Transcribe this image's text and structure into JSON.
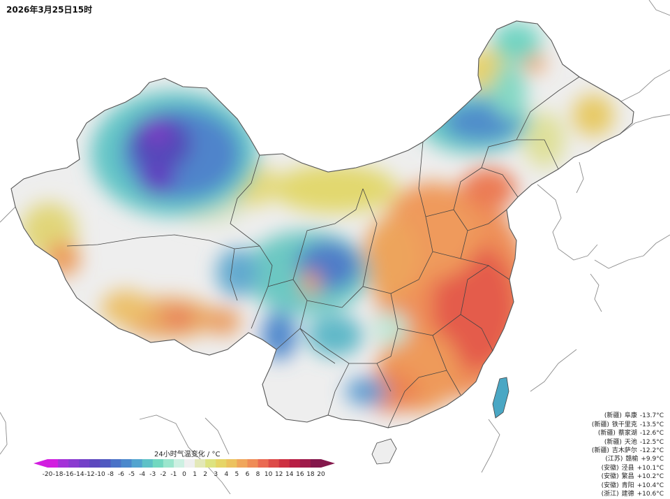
{
  "timestamp": "2026年3月25日15时",
  "legend": {
    "title": "24小时气温变化 / °C",
    "ticks": [
      "-20",
      "-18",
      "-16",
      "-14",
      "-12",
      "-10",
      "-8",
      "-6",
      "-5",
      "-4",
      "-3",
      "-2",
      "-1",
      "0",
      "1",
      "2",
      "3",
      "4",
      "5",
      "6",
      "8",
      "10",
      "12",
      "14",
      "16",
      "18",
      "20"
    ],
    "colors": [
      "#d21ee0",
      "#a431d8",
      "#8a3ad0",
      "#7340c8",
      "#5c48be",
      "#4f58c0",
      "#4a72c7",
      "#4a88cc",
      "#52a4cf",
      "#5ec1c7",
      "#72d8c0",
      "#9be6cd",
      "#cdf0e2",
      "#efefef",
      "#e3e8b8",
      "#dde380",
      "#e6d567",
      "#ecc25f",
      "#f0a65c",
      "#ef8c57",
      "#ea6a52",
      "#dd4b48",
      "#cd3142",
      "#b81f45",
      "#9e1a4a",
      "#84184c"
    ]
  },
  "stations_drop": [
    {
      "prov": "(新疆)",
      "name": "阜康",
      "value": "-13.7°C"
    },
    {
      "prov": "(新疆)",
      "name": "铁干里克",
      "value": "-13.5°C"
    },
    {
      "prov": "(新疆)",
      "name": "蔡家湖",
      "value": "-12.6°C"
    },
    {
      "prov": "(新疆)",
      "name": "天池",
      "value": "-12.5°C"
    },
    {
      "prov": "(新疆)",
      "name": "吉木萨尔",
      "value": "-12.2°C"
    }
  ],
  "stations_rise": [
    {
      "prov": "(江苏)",
      "name": "赣榆",
      "value": "+9.9°C"
    },
    {
      "prov": "(安徽)",
      "name": "泾县",
      "value": "+10.1°C"
    },
    {
      "prov": "(安徽)",
      "name": "繁昌",
      "value": "+10.2°C"
    },
    {
      "prov": "(安徽)",
      "name": "青阳",
      "value": "+10.4°C"
    },
    {
      "prov": "(浙江)",
      "name": "建德",
      "value": "+10.6°C"
    }
  ]
}
